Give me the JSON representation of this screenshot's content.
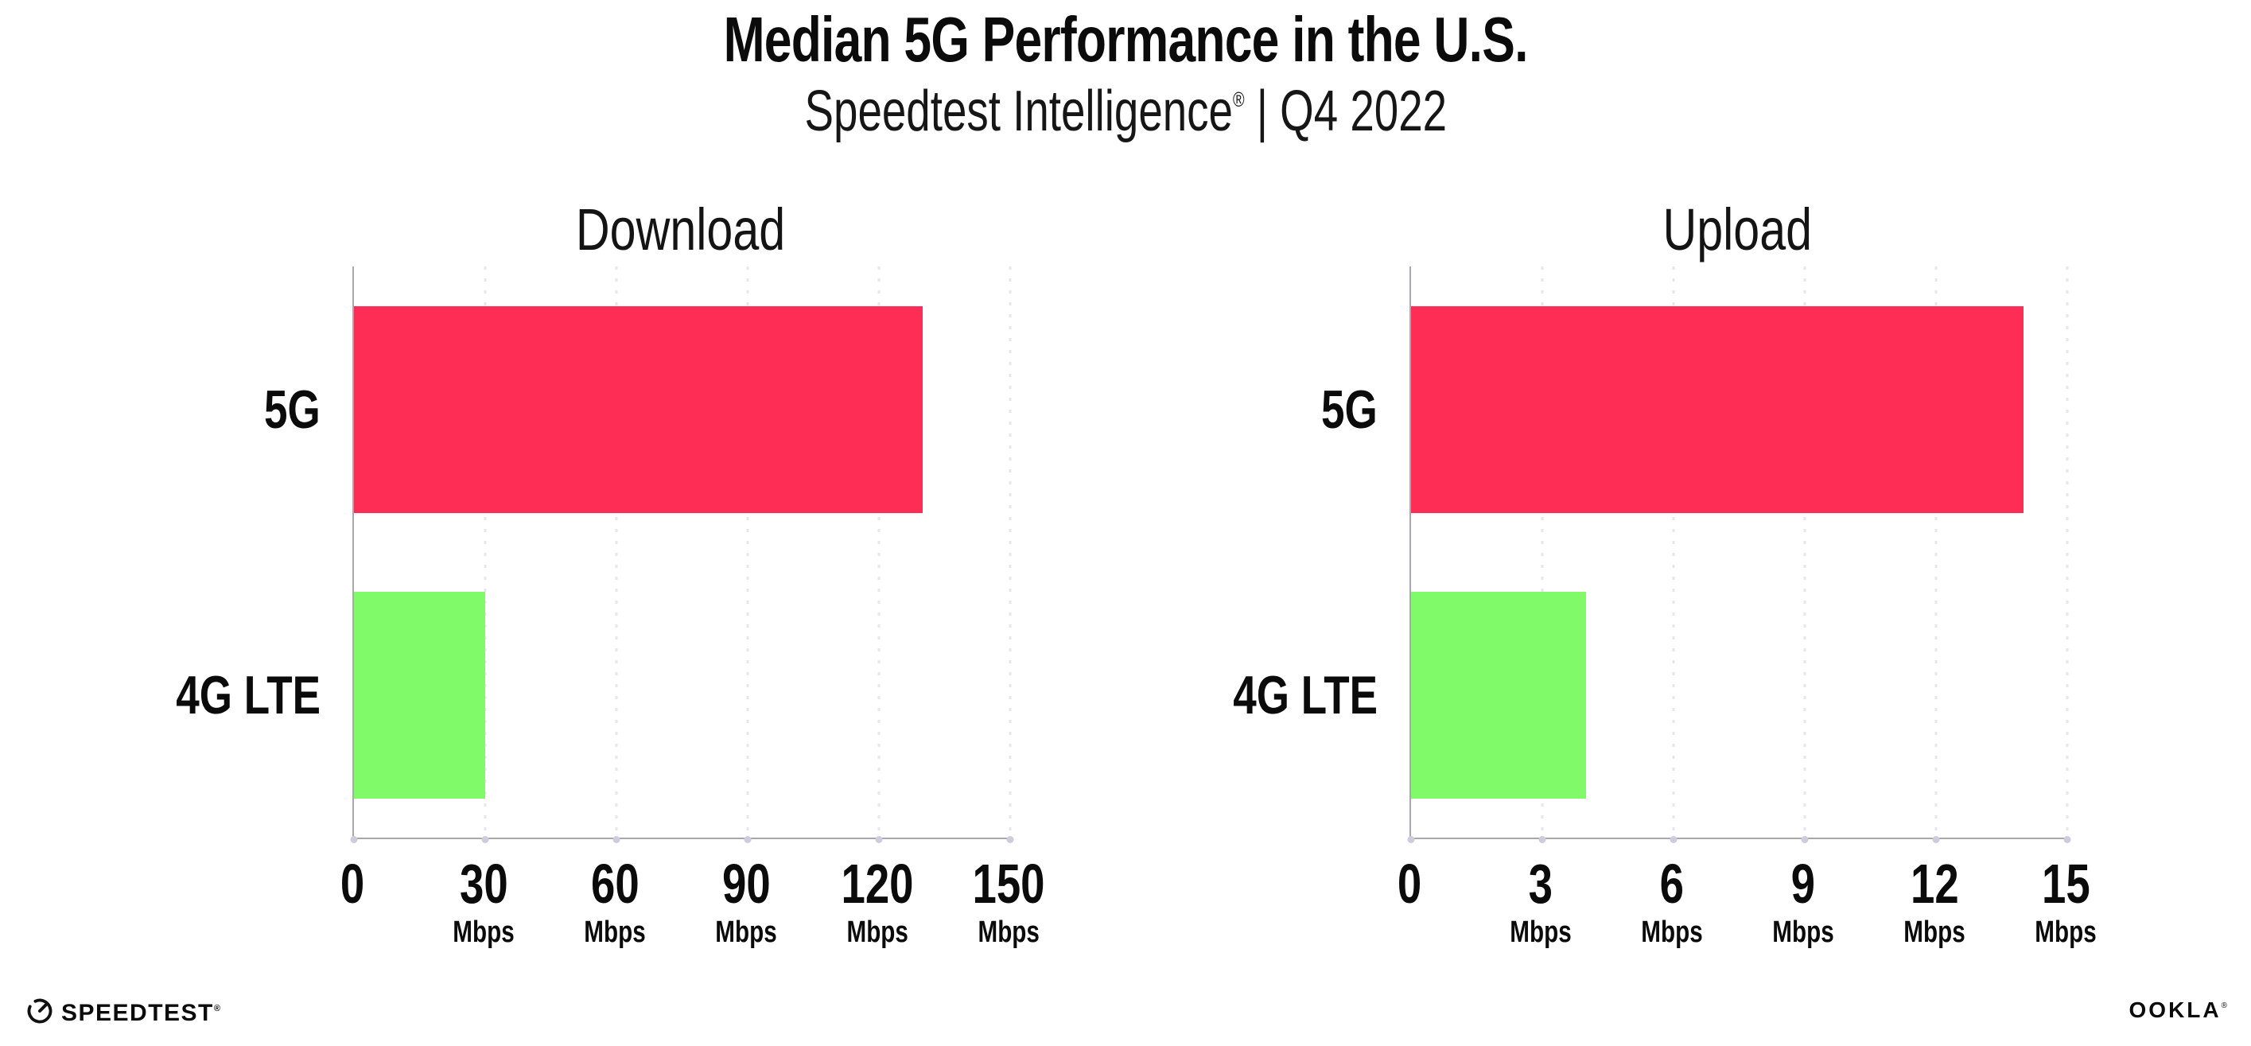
{
  "header": {
    "title": "Median 5G Performance in the U.S.",
    "subtitle_brand": "Speedtest Intelligence",
    "subtitle_mark": "®",
    "subtitle_rest": " | Q4 2022"
  },
  "chart_data": [
    {
      "type": "bar",
      "orientation": "horizontal",
      "title": "Download",
      "categories": [
        "5G",
        "4G LTE"
      ],
      "values": [
        130,
        30
      ],
      "unit": "Mbps",
      "xlim": [
        0,
        150
      ],
      "xticks": [
        0,
        30,
        60,
        90,
        120,
        150
      ],
      "bar_colors": [
        "#fe2d56",
        "#80fa68"
      ],
      "grid": "vertical-dotted",
      "legend": "none"
    },
    {
      "type": "bar",
      "orientation": "horizontal",
      "title": "Upload",
      "categories": [
        "5G",
        "4G LTE"
      ],
      "values": [
        14,
        4
      ],
      "unit": "Mbps",
      "xlim": [
        0,
        15
      ],
      "xticks": [
        0,
        3,
        6,
        9,
        12,
        15
      ],
      "bar_colors": [
        "#fe2d56",
        "#80fa68"
      ],
      "grid": "vertical-dotted",
      "legend": "none"
    }
  ],
  "footer": {
    "speedtest_logo_text": "SPEEDTEST",
    "speedtest_logo_mark": "®",
    "ookla_logo_text": "OOKLA",
    "ookla_logo_mark": "®"
  },
  "colors": {
    "bar_5g": "#fe2d56",
    "bar_4g_lte": "#80fa68",
    "axis": "#a7a7ae",
    "gridline": "#e6e6ef",
    "axis_tick_dot": "#ccccdc",
    "text": "#0b0b0b"
  }
}
